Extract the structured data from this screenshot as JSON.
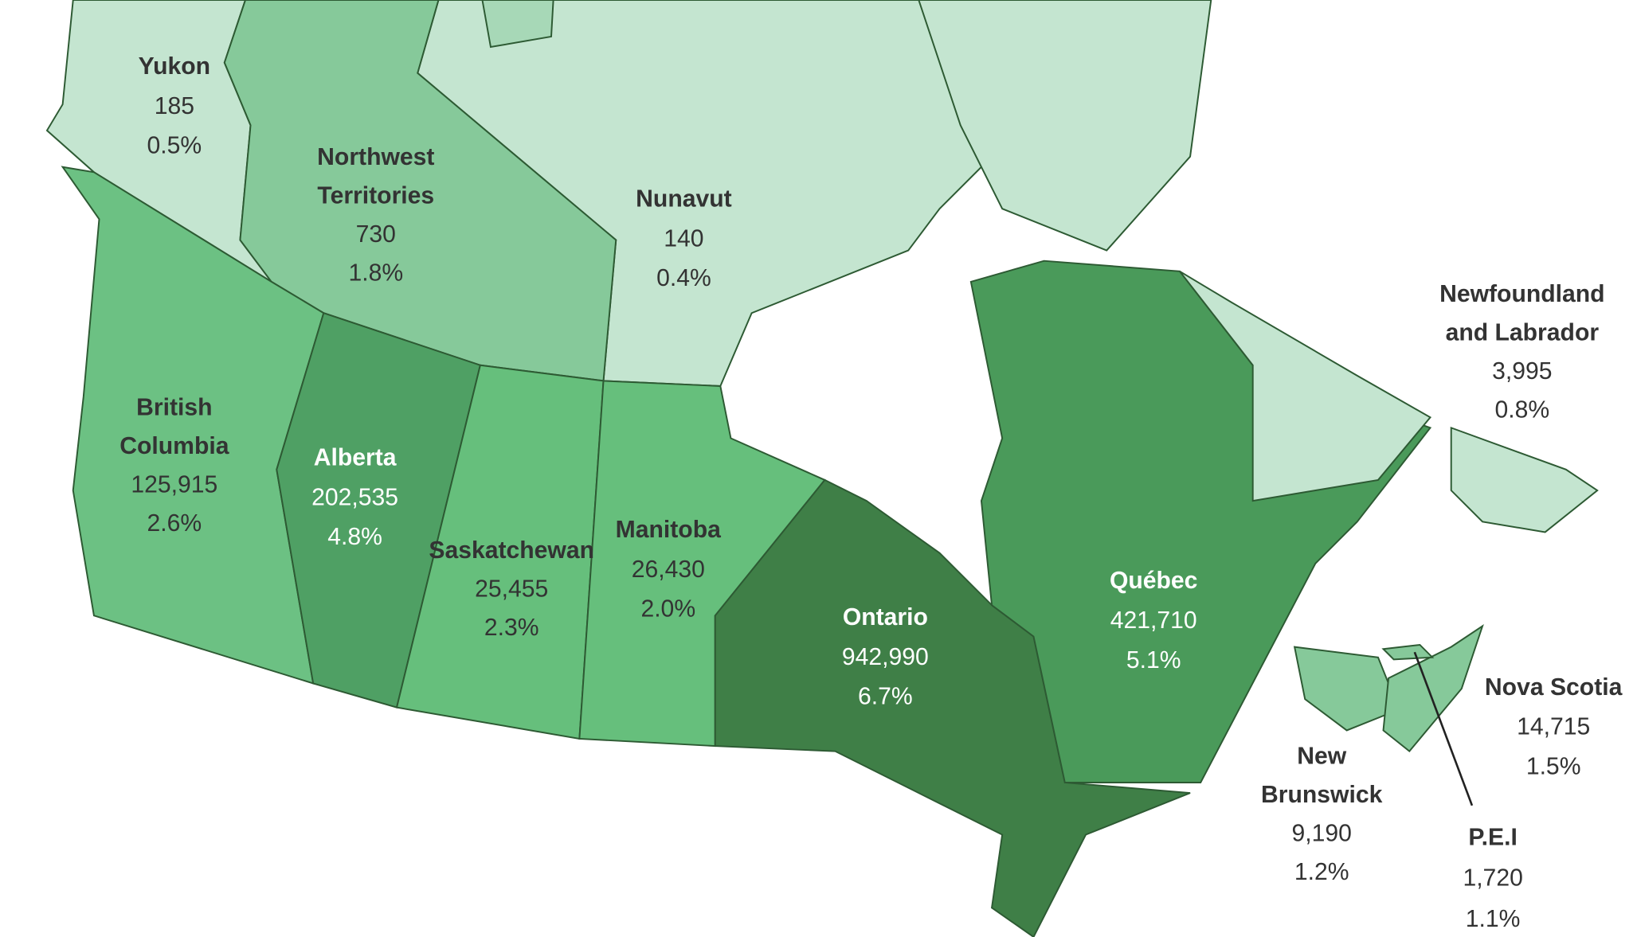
{
  "regions": [
    {
      "name_lines": [
        "Yukon"
      ],
      "count": "185",
      "percent": "0.5%"
    },
    {
      "name_lines": [
        "Northwest",
        "Territories"
      ],
      "count": "730",
      "percent": "1.8%"
    },
    {
      "name_lines": [
        "Nunavut"
      ],
      "count": "140",
      "percent": "0.4%"
    },
    {
      "name_lines": [
        "British",
        "Columbia"
      ],
      "count": "125,915",
      "percent": "2.6%"
    },
    {
      "name_lines": [
        "Alberta"
      ],
      "count": "202,535",
      "percent": "4.8%"
    },
    {
      "name_lines": [
        "Saskatchewan"
      ],
      "count": "25,455",
      "percent": "2.3%"
    },
    {
      "name_lines": [
        "Manitoba"
      ],
      "count": "26,430",
      "percent": "2.0%"
    },
    {
      "name_lines": [
        "Ontario"
      ],
      "count": "942,990",
      "percent": "6.7%"
    },
    {
      "name_lines": [
        "Québec"
      ],
      "count": "421,710",
      "percent": "5.1%"
    },
    {
      "name_lines": [
        "Newfoundland",
        "and Labrador"
      ],
      "count": "3,995",
      "percent": "0.8%"
    },
    {
      "name_lines": [
        "Nova Scotia"
      ],
      "count": "14,715",
      "percent": "1.5%"
    },
    {
      "name_lines": [
        "New",
        "Brunswick"
      ],
      "count": "9,190",
      "percent": "1.2%"
    },
    {
      "name_lines": [
        "P.E.I"
      ],
      "count": "1,720",
      "percent": "1.1%"
    }
  ]
}
